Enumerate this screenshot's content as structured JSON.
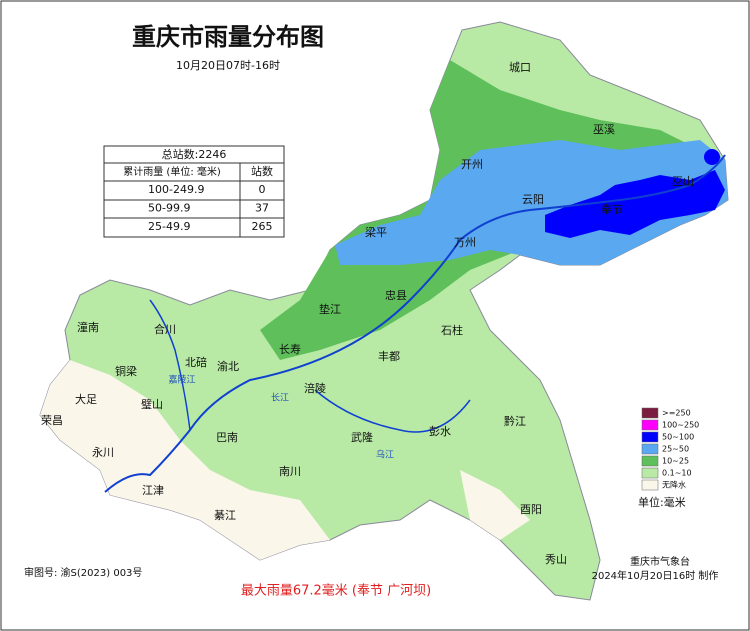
{
  "title": "重庆市雨量分布图",
  "subtitle": "10月20日07时-16时",
  "table": {
    "header": "总站数:2246",
    "columns": [
      "累计雨量 (单位: 毫米)",
      "站数"
    ],
    "rows": [
      [
        "100-249.9",
        "0"
      ],
      [
        "50-99.9",
        "37"
      ],
      [
        "25-49.9",
        "265"
      ]
    ]
  },
  "places": [
    "城口",
    "巫溪",
    "开州",
    "云阳",
    "奉节",
    "巫山",
    "万州",
    "梁平",
    "忠县",
    "垫江",
    "石柱",
    "长寿",
    "丰都",
    "潼南",
    "合川",
    "北碚",
    "渝北",
    "铜梁",
    "大足",
    "璧山",
    "涪陵",
    "荣昌",
    "巴南",
    "永川",
    "武隆",
    "彭水",
    "黔江",
    "南川",
    "江津",
    "綦江",
    "酉阳",
    "秀山"
  ],
  "rivers": [
    "长江",
    "乌江",
    "嘉陵江"
  ],
  "legend": [
    {
      "label": ">=250",
      "color": "#7a1b3f"
    },
    {
      "label": "100~250",
      "color": "#ff00ff"
    },
    {
      "label": "50~100",
      "color": "#0000ff"
    },
    {
      "label": "25~50",
      "color": "#5aa8f0"
    },
    {
      "label": "10~25",
      "color": "#5fbf5a"
    },
    {
      "label": "0.1~10",
      "color": "#b8eaa6"
    },
    {
      "label": "无降水",
      "color": "#faf6ea"
    }
  ],
  "unit": "单位:毫米",
  "agency": "重庆市气象台",
  "issued": "2024年10月20日16时 制作",
  "approval": "审图号: 渝S(2023) 003号",
  "max_rain": "最大雨量67.2毫米 (奉节 广河坝)"
}
